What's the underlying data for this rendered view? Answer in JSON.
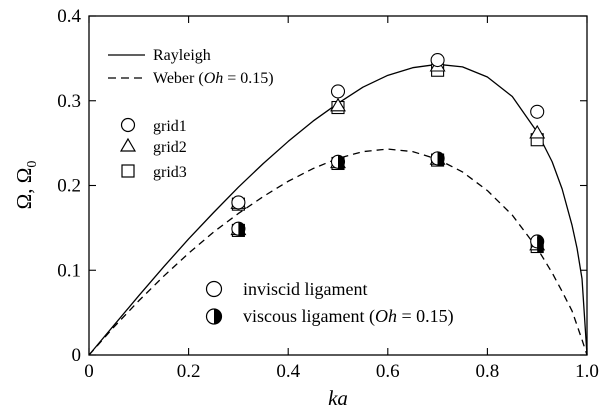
{
  "chart_data": {
    "type": "line",
    "xlabel": "ka",
    "ylabel": "Ω, Ω",
    "ylabel_sub": "0",
    "xlim": [
      0,
      1.0
    ],
    "ylim": [
      0,
      0.4
    ],
    "x_ticks": [
      {
        "value": 0,
        "label": "0"
      },
      {
        "value": 0.2,
        "label": "0.2"
      },
      {
        "value": 0.4,
        "label": "0.4"
      },
      {
        "value": 0.6,
        "label": "0.6"
      },
      {
        "value": 0.8,
        "label": "0.8"
      },
      {
        "value": 1.0,
        "label": "1.0"
      }
    ],
    "y_ticks": [
      {
        "value": 0,
        "label": "0"
      },
      {
        "value": 0.1,
        "label": "0.1"
      },
      {
        "value": 0.2,
        "label": "0.2"
      },
      {
        "value": 0.3,
        "label": "0.3"
      },
      {
        "value": 0.4,
        "label": "0.4"
      }
    ],
    "curves": [
      {
        "name": "Rayleigh",
        "style": "solid",
        "x": [
          0,
          0.05,
          0.1,
          0.15,
          0.2,
          0.25,
          0.3,
          0.35,
          0.4,
          0.45,
          0.5,
          0.55,
          0.6,
          0.65,
          0.7,
          0.75,
          0.8,
          0.85,
          0.9,
          0.93,
          0.95,
          0.97,
          0.98,
          0.99,
          1.0
        ],
        "y": [
          0,
          0.035,
          0.07,
          0.104,
          0.137,
          0.168,
          0.198,
          0.226,
          0.252,
          0.276,
          0.297,
          0.316,
          0.33,
          0.339,
          0.343,
          0.34,
          0.328,
          0.305,
          0.263,
          0.228,
          0.196,
          0.153,
          0.126,
          0.09,
          0
        ]
      },
      {
        "name": "Weber (Oh = 0.15)",
        "style": "dashed",
        "x": [
          0,
          0.05,
          0.1,
          0.15,
          0.2,
          0.25,
          0.3,
          0.35,
          0.4,
          0.45,
          0.5,
          0.55,
          0.6,
          0.65,
          0.7,
          0.75,
          0.8,
          0.85,
          0.9,
          0.93,
          0.95,
          0.97,
          0.99,
          1.0
        ],
        "y": [
          0,
          0.033,
          0.064,
          0.093,
          0.12,
          0.145,
          0.167,
          0.187,
          0.205,
          0.22,
          0.232,
          0.24,
          0.243,
          0.24,
          0.231,
          0.216,
          0.194,
          0.165,
          0.126,
          0.097,
          0.075,
          0.052,
          0.018,
          0
        ]
      }
    ],
    "inviscid_points": [
      {
        "name": "grid1",
        "marker": "circle",
        "x": [
          0.3,
          0.5,
          0.7,
          0.9
        ],
        "y": [
          0.18,
          0.311,
          0.348,
          0.287
        ]
      },
      {
        "name": "grid2",
        "marker": "triangle",
        "x": [
          0.3,
          0.5,
          0.7,
          0.9
        ],
        "y": [
          0.179,
          0.294,
          0.341,
          0.262
        ]
      },
      {
        "name": "grid3",
        "marker": "square",
        "x": [
          0.3,
          0.5,
          0.7,
          0.9
        ],
        "y": [
          0.178,
          0.292,
          0.336,
          0.254
        ]
      }
    ],
    "viscous_points": [
      {
        "name": "grid1",
        "marker": "circle",
        "x": [
          0.3,
          0.5,
          0.7,
          0.9
        ],
        "y": [
          0.149,
          0.228,
          0.232,
          0.134
        ]
      },
      {
        "name": "grid2",
        "marker": "triangle",
        "x": [
          0.3,
          0.5,
          0.7,
          0.9
        ],
        "y": [
          0.148,
          0.227,
          0.231,
          0.13
        ]
      },
      {
        "name": "grid3",
        "marker": "square",
        "x": [
          0.3,
          0.5,
          0.7,
          0.9
        ],
        "y": [
          0.147,
          0.226,
          0.23,
          0.128
        ]
      }
    ],
    "legend_lines": {
      "rayleigh": "Rayleigh",
      "weber_prefix": "Weber (",
      "weber_oh": "Oh",
      "weber_suffix": " = 0.15)"
    },
    "legend_grids": [
      "grid1",
      "grid2",
      "grid3"
    ],
    "legend_types": {
      "inviscid": "inviscid ligament",
      "viscous_prefix": "viscous ligament (",
      "viscous_oh": "Oh",
      "viscous_suffix": " = 0.15)"
    }
  }
}
